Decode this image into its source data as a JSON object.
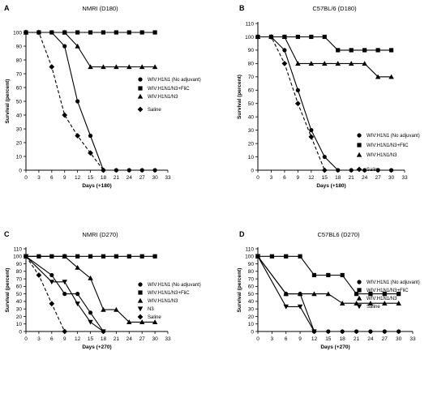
{
  "chart_data": [
    {
      "type": "line",
      "panel": "A",
      "title": "NMRI (D180)",
      "xlabel": "Days (+180)",
      "ylabel": "Survival (percent)",
      "xlim": [
        0,
        33
      ],
      "ylim": [
        0,
        100
      ],
      "xticks": [
        0,
        3,
        6,
        9,
        12,
        15,
        18,
        21,
        24,
        27,
        30,
        33
      ],
      "yticks": [
        0,
        10,
        20,
        30,
        40,
        50,
        60,
        70,
        80,
        90,
        100
      ],
      "grid": false,
      "legend_position": "right",
      "series": [
        {
          "name": "WIV:H1N1 (No adjuvant)",
          "marker": "circle",
          "dash": false,
          "x": [
            0,
            6,
            9,
            12,
            15,
            18,
            21,
            24,
            27,
            30
          ],
          "y": [
            100,
            100,
            90,
            50,
            25,
            0,
            0,
            0,
            0,
            0
          ]
        },
        {
          "name": "WIV:H1N1/N3+FliC",
          "marker": "square",
          "dash": false,
          "x": [
            0,
            3,
            6,
            9,
            12,
            15,
            18,
            21,
            24,
            27,
            30
          ],
          "y": [
            100,
            100,
            100,
            100,
            100,
            100,
            100,
            100,
            100,
            100,
            100
          ]
        },
        {
          "name": "WIV:H1N1/N3",
          "marker": "triangle",
          "dash": false,
          "x": [
            0,
            9,
            12,
            15,
            18,
            21,
            24,
            27,
            30
          ],
          "y": [
            100,
            100,
            90,
            75,
            75,
            75,
            75,
            75,
            75
          ]
        },
        {
          "name": "Saline",
          "marker": "diamond",
          "dash": true,
          "x": [
            0,
            3,
            6,
            9,
            12,
            15,
            18
          ],
          "y": [
            100,
            100,
            75,
            40,
            25,
            12.5,
            0
          ]
        }
      ]
    },
    {
      "type": "line",
      "panel": "B",
      "title": "C57BL/6 (D180)",
      "xlabel": "Days (+180)",
      "ylabel": "Survival (percent)",
      "xlim": [
        0,
        33
      ],
      "ylim": [
        0,
        110
      ],
      "xticks": [
        0,
        3,
        6,
        9,
        12,
        15,
        18,
        21,
        24,
        27,
        30,
        33
      ],
      "yticks": [
        0,
        10,
        20,
        30,
        40,
        50,
        60,
        70,
        80,
        90,
        100,
        110
      ],
      "grid": false,
      "legend_position": "right",
      "series": [
        {
          "name": "WIV:H1N1 (No adjuvant)",
          "marker": "circle",
          "dash": false,
          "x": [
            0,
            3,
            6,
            9,
            12,
            15,
            18,
            21,
            24,
            27,
            30
          ],
          "y": [
            100,
            100,
            90,
            60,
            30,
            10,
            0,
            0,
            0,
            0,
            0
          ]
        },
        {
          "name": "WIV:H1N1/N3+FliC",
          "marker": "square",
          "dash": false,
          "x": [
            0,
            3,
            6,
            9,
            12,
            15,
            18,
            21,
            24,
            27,
            30
          ],
          "y": [
            100,
            100,
            100,
            100,
            100,
            100,
            90,
            90,
            90,
            90,
            90
          ]
        },
        {
          "name": "WIV:H1N1/N3",
          "marker": "triangle",
          "dash": false,
          "x": [
            0,
            3,
            6,
            9,
            12,
            15,
            18,
            21,
            24,
            27,
            30
          ],
          "y": [
            100,
            100,
            100,
            80,
            80,
            80,
            80,
            80,
            80,
            70,
            70
          ]
        },
        {
          "name": "Saline",
          "marker": "diamond",
          "dash": true,
          "x": [
            0,
            3,
            6,
            9,
            12,
            15
          ],
          "y": [
            100,
            100,
            80,
            50,
            25,
            0
          ]
        }
      ]
    },
    {
      "type": "line",
      "panel": "C",
      "title": "NMRI (D270)",
      "xlabel": "Days (+270)",
      "ylabel": "Survival (percent)",
      "xlim": [
        0,
        33
      ],
      "ylim": [
        0,
        110
      ],
      "xticks": [
        0,
        3,
        6,
        9,
        12,
        15,
        18,
        21,
        24,
        27,
        30,
        33
      ],
      "yticks": [
        0,
        10,
        20,
        30,
        40,
        50,
        60,
        70,
        80,
        90,
        100,
        110
      ],
      "grid": false,
      "legend_position": "right",
      "series": [
        {
          "name": "WIV:H1N1 (No adjuvant)",
          "marker": "circle",
          "dash": false,
          "x": [
            0,
            6,
            9,
            12,
            15,
            18
          ],
          "y": [
            100,
            75,
            50,
            50,
            25,
            0
          ]
        },
        {
          "name": "WIV:H1N1/N3+FliC",
          "marker": "square",
          "dash": false,
          "x": [
            0,
            3,
            6,
            9,
            12,
            15,
            18,
            21,
            24,
            27,
            30
          ],
          "y": [
            100,
            100,
            100,
            100,
            100,
            100,
            100,
            100,
            100,
            100,
            100
          ]
        },
        {
          "name": "WIV:H1N1/N3",
          "marker": "triangle",
          "dash": false,
          "x": [
            0,
            9,
            12,
            15,
            18,
            21,
            24,
            27,
            30
          ],
          "y": [
            100,
            100,
            85,
            71,
            29,
            29,
            12.5,
            12.5,
            12.5
          ]
        },
        {
          "name": "N3",
          "marker": "triangle-down",
          "dash": false,
          "x": [
            0,
            6,
            9,
            12,
            15,
            18
          ],
          "y": [
            100,
            66,
            66,
            37,
            12.5,
            0
          ]
        },
        {
          "name": "Saline",
          "marker": "diamond",
          "dash": true,
          "x": [
            0,
            3,
            6,
            9
          ],
          "y": [
            100,
            75,
            37,
            0
          ]
        }
      ]
    },
    {
      "type": "line",
      "panel": "D",
      "title": "C57BL6 (D270)",
      "xlabel": "Days (+270)",
      "ylabel": "Survival (percent)",
      "xlim": [
        0,
        33
      ],
      "ylim": [
        0,
        110
      ],
      "xticks": [
        0,
        3,
        6,
        9,
        12,
        15,
        18,
        21,
        24,
        27,
        30,
        33
      ],
      "yticks": [
        0,
        10,
        20,
        30,
        40,
        50,
        60,
        70,
        80,
        90,
        100,
        110
      ],
      "grid": false,
      "legend_position": "right",
      "series": [
        {
          "name": "WIV:H1N1 (No adjuvant)",
          "marker": "circle",
          "dash": false,
          "x": [
            0,
            6,
            9,
            12,
            15,
            18,
            21,
            24,
            27,
            30
          ],
          "y": [
            100,
            50,
            50,
            0,
            0,
            0,
            0,
            0,
            0,
            0
          ]
        },
        {
          "name": "WIV:H1N1/N3+FliC",
          "marker": "square",
          "dash": false,
          "x": [
            0,
            3,
            6,
            9,
            12,
            15,
            18,
            21,
            24,
            27,
            30
          ],
          "y": [
            100,
            100,
            100,
            100,
            75,
            75,
            75,
            50,
            50,
            50,
            50
          ]
        },
        {
          "name": "WIV:H1N1/N3",
          "marker": "triangle",
          "dash": false,
          "x": [
            0,
            6,
            9,
            12,
            15,
            18,
            21,
            24,
            27,
            30
          ],
          "y": [
            100,
            50,
            50,
            50,
            50,
            37.5,
            37.5,
            37.5,
            37.5,
            37.5
          ]
        },
        {
          "name": "Saline",
          "marker": "triangle-down",
          "dash": false,
          "x": [
            0,
            6,
            9,
            12
          ],
          "y": [
            100,
            33,
            33,
            0
          ]
        }
      ]
    }
  ]
}
